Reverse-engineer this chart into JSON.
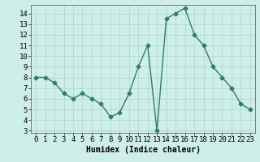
{
  "x": [
    0,
    1,
    2,
    3,
    4,
    5,
    6,
    7,
    8,
    9,
    10,
    11,
    12,
    13,
    14,
    15,
    16,
    17,
    18,
    19,
    20,
    21,
    22,
    23
  ],
  "y": [
    8.0,
    8.0,
    7.5,
    6.5,
    6.0,
    6.5,
    6.0,
    5.5,
    4.3,
    4.7,
    6.5,
    9.0,
    11.0,
    3.0,
    13.5,
    14.0,
    14.5,
    12.0,
    11.0,
    9.0,
    8.0,
    7.0,
    5.5,
    5.0
  ],
  "xlabel": "Humidex (Indice chaleur)",
  "ylim": [
    2.8,
    14.8
  ],
  "xlim": [
    -0.5,
    23.5
  ],
  "yticks": [
    3,
    4,
    5,
    6,
    7,
    8,
    9,
    10,
    11,
    12,
    13,
    14
  ],
  "xticks": [
    0,
    1,
    2,
    3,
    4,
    5,
    6,
    7,
    8,
    9,
    10,
    11,
    12,
    13,
    14,
    15,
    16,
    17,
    18,
    19,
    20,
    21,
    22,
    23
  ],
  "line_color": "#2e7d6e",
  "bg_color": "#ceeee8",
  "grid_color": "#aed4ce",
  "marker": "D",
  "marker_size": 2.5,
  "line_width": 1.0,
  "xlabel_fontsize": 7,
  "tick_fontsize": 6.5
}
